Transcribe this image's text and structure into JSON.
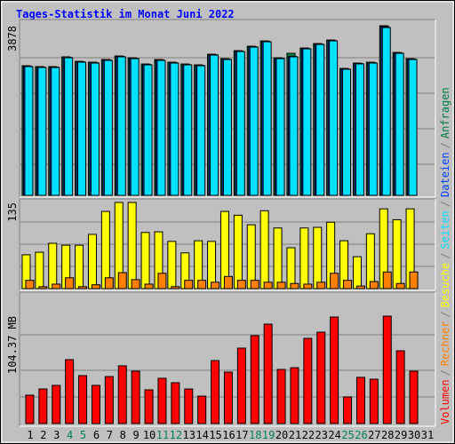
{
  "title": "Tages-Statistik im Monat Juni 2022",
  "legend_separator": "/",
  "chart_data": [
    {
      "type": "bar",
      "ylim": [
        0,
        3878
      ],
      "yticks": [
        3878
      ],
      "series": [
        {
          "name": "Anfragen",
          "color": "#008040",
          "values": [
            2964,
            2944,
            2944,
            3167,
            3065,
            3045,
            3106,
            3187,
            3146,
            3004,
            3106,
            3045,
            3004,
            2984,
            3227,
            3126,
            3309,
            3410,
            3532,
            3146,
            3248,
            3370,
            3471,
            3552,
            2903,
            3025,
            3045,
            3878,
            3268,
            3126,
            null
          ]
        },
        {
          "name": "Dateien",
          "color": "#0040ff",
          "values": [
            2954,
            2934,
            2934,
            3157,
            3055,
            3035,
            3096,
            3177,
            3136,
            2994,
            3096,
            3035,
            2994,
            2974,
            3217,
            3116,
            3299,
            3400,
            3522,
            3136,
            3177,
            3360,
            3461,
            3542,
            2893,
            3015,
            3035,
            3857,
            3258,
            3116,
            null
          ]
        },
        {
          "name": "Seiten",
          "color": "#00e0ff",
          "values": [
            2944,
            2924,
            2924,
            3147,
            3045,
            3025,
            3086,
            3167,
            3126,
            2984,
            3086,
            3025,
            2984,
            2964,
            3207,
            3106,
            3289,
            3390,
            3512,
            3126,
            3167,
            3350,
            3451,
            3532,
            2883,
            3005,
            3025,
            3837,
            3248,
            3106,
            null
          ]
        }
      ]
    },
    {
      "type": "bar",
      "ylim": [
        0,
        135
      ],
      "yticks": [
        135
      ],
      "series": [
        {
          "name": "Besuche",
          "color": "#ffff00",
          "values": [
            53,
            57,
            71,
            68,
            68,
            85,
            121,
            135,
            135,
            88,
            89,
            74,
            56,
            75,
            74,
            121,
            115,
            100,
            122,
            95,
            64,
            95,
            96,
            104,
            75,
            50,
            86,
            125,
            108,
            125,
            null
          ]
        },
        {
          "name": "Rechner",
          "color": "#ff8000",
          "values": [
            13,
            3,
            7,
            17,
            3,
            6,
            17,
            25,
            14,
            7,
            24,
            3,
            13,
            13,
            10,
            19,
            13,
            13,
            10,
            10,
            8,
            7,
            10,
            24,
            13,
            4,
            11,
            26,
            8,
            26,
            null
          ]
        }
      ]
    },
    {
      "type": "bar",
      "ylim": [
        0,
        104.37
      ],
      "yticks": [
        {
          "value": 104.37,
          "label": "104.37 MB"
        }
      ],
      "categories": [
        "1",
        "2",
        "3",
        "4",
        "5",
        "6",
        "7",
        "8",
        "9",
        "10",
        "11",
        "12",
        "13",
        "14",
        "15",
        "16",
        "17",
        "18",
        "19",
        "20",
        "21",
        "22",
        "23",
        "24",
        "25",
        "26",
        "27",
        "28",
        "29",
        "30",
        "31"
      ],
      "category_colors": [
        "#000000",
        "#000000",
        "#000000",
        "#00805c",
        "#00805c",
        "#000000",
        "#000000",
        "#000000",
        "#000000",
        "#000000",
        "#00805c",
        "#00805c",
        "#000000",
        "#000000",
        "#000000",
        "#000000",
        "#000000",
        "#00805c",
        "#00805c",
        "#000000",
        "#000000",
        "#000000",
        "#000000",
        "#000000",
        "#00805c",
        "#00805c",
        "#000000",
        "#000000",
        "#000000",
        "#000000",
        "#000000"
      ],
      "series": [
        {
          "name": "Volumen",
          "color": "#ff0000",
          "values": [
            27.6,
            33.6,
            37.1,
            62.1,
            46.6,
            37.1,
            45.7,
            56.1,
            50.9,
            32.8,
            44.0,
            39.7,
            33.6,
            26.7,
            61.2,
            50.0,
            73.3,
            85.4,
            96.6,
            52.6,
            54.3,
            82.8,
            88.8,
            103.5,
            25.9,
            44.9,
            43.1,
            104.37,
            70.7,
            50.9,
            null
          ]
        }
      ]
    }
  ]
}
